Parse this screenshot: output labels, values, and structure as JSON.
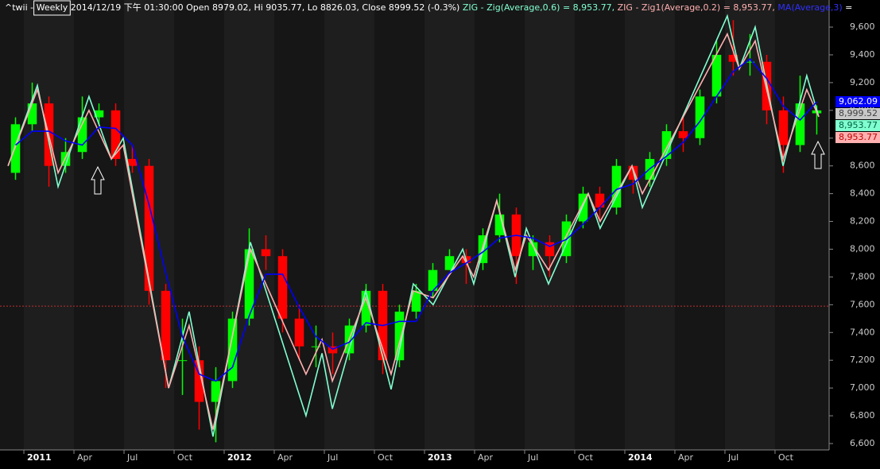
{
  "chart_data": {
    "type": "candlestick",
    "header": [
      {
        "text": "^twii - ",
        "color": "#ffffff"
      },
      {
        "text": "Weekly",
        "color": "#ffffff",
        "boxed": true
      },
      {
        "text": " 2014/12/19 下午 01:30:00 Open 8979.02, Hi 9035.77, Lo 8826.03, Close 8999.52 (-0.3%) ",
        "color": "#ffffff"
      },
      {
        "text": "ZIG - Zig(Average,0.6) = 8,953.77, ",
        "color": "#80ffd0"
      },
      {
        "text": "ZIG - Zig1(Average,0.2) = 8,953.77, ",
        "color": "#ffb0b0"
      },
      {
        "text": "MA(Average,3)",
        "color": "#3030ff"
      },
      {
        "text": " =",
        "color": "#ffffff"
      }
    ],
    "x": [
      -0.5,
      0.5,
      1.5,
      2.5,
      3.5,
      4.5,
      5.5,
      6.5,
      7.5,
      8.5,
      9.5,
      10.5,
      11.5,
      12.5,
      13.5,
      14.5,
      15.5,
      16.5,
      17.5,
      18.5,
      19.5,
      20.5,
      21.5,
      22.5,
      23.5,
      24.5,
      25.5,
      26.5,
      27.5,
      28.5,
      29.5,
      30.5,
      31.5,
      32.5,
      33.5,
      34.5,
      35.5,
      36.5,
      37.5,
      38.5,
      39.5,
      40.5,
      41.5,
      42.5,
      43.5,
      44.5,
      45.5,
      46.5,
      47.5
    ],
    "open": [
      8550,
      8900,
      9050,
      8600,
      8700,
      8950,
      9000,
      8650,
      8600,
      7700,
      7200,
      7200,
      6900,
      7050,
      7500,
      8000,
      7950,
      7500,
      7300,
      7300,
      7250,
      7450,
      7700,
      7200,
      7550,
      7700,
      7850,
      7950,
      7900,
      8100,
      8250,
      7950,
      8050,
      7950,
      8200,
      8400,
      8300,
      8600,
      8500,
      8650,
      8850,
      8800,
      9100,
      9400,
      9350,
      9350,
      9000,
      8750,
      8979.02
    ],
    "high": [
      8950,
      9200,
      9100,
      8800,
      9100,
      9050,
      9050,
      8750,
      8650,
      7750,
      7500,
      7300,
      7150,
      7550,
      8150,
      8100,
      8000,
      7600,
      7450,
      7400,
      7500,
      7750,
      7750,
      7600,
      7750,
      7900,
      8000,
      8000,
      8150,
      8400,
      8300,
      8100,
      8100,
      8250,
      8450,
      8450,
      8650,
      8600,
      8700,
      8900,
      8950,
      9150,
      9500,
      9650,
      9550,
      9400,
      9100,
      9250,
      9035.77
    ],
    "low": [
      8500,
      8850,
      8450,
      8550,
      8650,
      8900,
      8600,
      8550,
      7600,
      7000,
      6950,
      6700,
      6609,
      7000,
      7450,
      7850,
      7400,
      7200,
      7150,
      7100,
      7200,
      7400,
      7100,
      7150,
      7500,
      7650,
      7850,
      7750,
      7850,
      8050,
      7750,
      7850,
      7800,
      7900,
      8150,
      8200,
      8250,
      8400,
      8450,
      8600,
      8700,
      8750,
      9050,
      9250,
      9250,
      8900,
      8550,
      8700,
      8826.03
    ],
    "close": [
      8900,
      9050,
      8600,
      8700,
      8950,
      9000,
      8650,
      8600,
      7700,
      7200,
      7200,
      6900,
      7050,
      7500,
      8000,
      7950,
      7500,
      7300,
      7300,
      7250,
      7450,
      7700,
      7200,
      7550,
      7700,
      7850,
      7950,
      7900,
      8100,
      8250,
      7950,
      8050,
      7950,
      8200,
      8400,
      8300,
      8600,
      8500,
      8650,
      8850,
      8800,
      9100,
      9400,
      9350,
      9350,
      9000,
      8750,
      9050,
      8999.52
    ],
    "up_color": "#00ff00",
    "down_color": "#ff0000",
    "lines": [
      {
        "color": "#80ffd0",
        "x": [
          -0.95,
          0.81,
          2.05,
          3.9,
          5.24,
          5.95,
          8.67,
          9.9,
          11.33,
          13.57,
          16.9,
          17.86,
          18.48,
          20.48,
          22.0,
          23.33,
          24.52,
          26.29,
          26.95,
          28.33,
          29.43,
          30.1,
          31.43,
          33.81,
          34.52,
          36.43,
          37.05,
          42.14,
          42.86,
          43.81,
          45.48,
          46.9,
          47.62
        ],
        "values": [
          8600,
          9180,
          8450,
          9100,
          8650,
          8800,
          7000,
          7550,
          6650,
          8050,
          6800,
          7250,
          6850,
          7700,
          6990,
          7750,
          7600,
          8000,
          7750,
          8350,
          7800,
          8150,
          7750,
          8400,
          8150,
          8600,
          8300,
          9680,
          9300,
          9600,
          8600,
          9250,
          8953.77
        ]
      },
      {
        "color": "#ffb0b0",
        "x": [
          -0.95,
          0.81,
          2.05,
          3.9,
          5.24,
          5.95,
          8.67,
          9.9,
          11.33,
          13.57,
          16.9,
          17.86,
          18.48,
          20.48,
          22.0,
          23.33,
          24.52,
          26.29,
          26.95,
          28.33,
          29.43,
          30.1,
          31.43,
          33.81,
          34.52,
          36.43,
          37.05,
          42.14,
          42.86,
          43.81,
          45.48,
          46.9,
          47.62
        ],
        "values": [
          8600,
          9150,
          8550,
          9000,
          8650,
          8750,
          7000,
          7450,
          6700,
          8000,
          7100,
          7350,
          7050,
          7650,
          7100,
          7700,
          7650,
          7950,
          7800,
          8350,
          7850,
          8100,
          7850,
          8400,
          8200,
          8600,
          8400,
          9550,
          9300,
          9500,
          8650,
          9150,
          8953.77
        ]
      },
      {
        "color": "#0000ff",
        "x": [
          -0.5,
          0.5,
          1.5,
          2.5,
          3.5,
          4.5,
          5.5,
          6.5,
          7.5,
          8.5,
          9.5,
          10.5,
          11.5,
          12.5,
          13.5,
          14.5,
          15.5,
          16.5,
          17.5,
          18.5,
          19.5,
          20.5,
          21.5,
          22.5,
          23.5,
          24.5,
          25.5,
          26.5,
          27.5,
          28.5,
          29.5,
          30.5,
          31.5,
          32.5,
          33.5,
          34.5,
          35.5,
          36.5,
          37.5,
          38.5,
          39.5,
          40.5,
          41.5,
          42.5,
          43.5,
          44.5,
          45.5,
          46.5,
          47.5
        ],
        "values": [
          8750,
          8850,
          8850,
          8780,
          8750,
          8880,
          8870,
          8750,
          8320,
          7830,
          7370,
          7100,
          7050,
          7150,
          7520,
          7820,
          7820,
          7580,
          7370,
          7280,
          7330,
          7470,
          7450,
          7480,
          7480,
          7700,
          7830,
          7900,
          7980,
          8080,
          8100,
          8080,
          8020,
          8070,
          8180,
          8300,
          8430,
          8470,
          8580,
          8670,
          8770,
          8920,
          9100,
          9280,
          9370,
          9230,
          9030,
          8930,
          9062.09
        ]
      }
    ],
    "ref_line": {
      "value": 7590,
      "color": "#c03030"
    },
    "last_value_labels": [
      {
        "value": 9062.09,
        "label": "9,062.09",
        "color": "#0000ff",
        "text_color": "#ffffff"
      },
      {
        "value": 8999.52,
        "label": "8,999.52",
        "color": "#c8c8c8",
        "text_color": "#404040"
      },
      {
        "value": 8953.77,
        "label": "8,953.77",
        "color": "#80ffd0",
        "text_color": "#006040"
      },
      {
        "value": 8953.77,
        "label": "8,953.77",
        "color": "#ffb0b0",
        "text_color": "#c00000"
      }
    ],
    "xlim": [
      -1.43,
      48.24
    ],
    "xticks": [
      {
        "value": 0,
        "label": "2011"
      },
      {
        "value": 3,
        "label": "Apr"
      },
      {
        "value": 6,
        "label": "Jul"
      },
      {
        "value": 9,
        "label": "Oct"
      },
      {
        "value": 12,
        "label": "2012"
      },
      {
        "value": 15,
        "label": "Apr"
      },
      {
        "value": 18,
        "label": "Jul"
      },
      {
        "value": 21,
        "label": "Oct"
      },
      {
        "value": 24,
        "label": "2013"
      },
      {
        "value": 27,
        "label": "Apr"
      },
      {
        "value": 30,
        "label": "Jul"
      },
      {
        "value": 33,
        "label": "Oct"
      },
      {
        "value": 36,
        "label": "2014"
      },
      {
        "value": 39,
        "label": "Apr"
      },
      {
        "value": 42,
        "label": "Jul"
      },
      {
        "value": 45,
        "label": "Oct"
      }
    ],
    "ylim": [
      6554,
      9795
    ],
    "yticks": [
      {
        "value": 6600,
        "label": "6,600"
      },
      {
        "value": 6800,
        "label": "6,800"
      },
      {
        "value": 7000,
        "label": "7,000"
      },
      {
        "value": 7200,
        "label": "7,200"
      },
      {
        "value": 7400,
        "label": "7,400"
      },
      {
        "value": 7600,
        "label": "7,600"
      },
      {
        "value": 7800,
        "label": "7,800"
      },
      {
        "value": 8000,
        "label": "8,000"
      },
      {
        "value": 8200,
        "label": "8,200"
      },
      {
        "value": 8400,
        "label": "8,400"
      },
      {
        "value": 8600,
        "label": "8,600"
      },
      {
        "value": 8800,
        "label": "8,800"
      },
      {
        "value": 9000,
        "label": "9,000"
      },
      {
        "value": 9200,
        "label": "9,200"
      },
      {
        "value": 9400,
        "label": "9,400"
      },
      {
        "value": 9600,
        "label": "9,600"
      }
    ]
  }
}
